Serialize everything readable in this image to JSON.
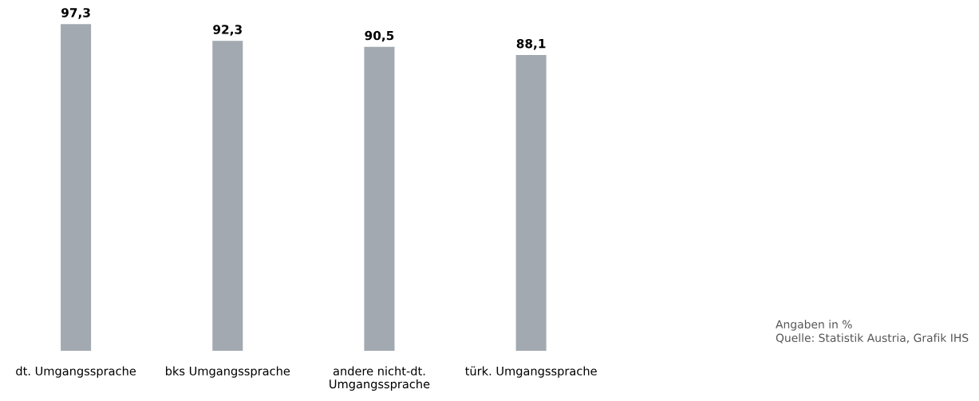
{
  "chart_data": {
    "type": "bar",
    "categories": [
      "dt. Umgangssprache",
      "bks Umgangssprache",
      "andere nicht-dt.\nUmgangssprache",
      "türk. Umgangssprache"
    ],
    "values": [
      97.3,
      92.3,
      90.5,
      88.1
    ],
    "color": "#a2a9b0",
    "data_labels": true,
    "value_labels": [
      "97,3",
      "92,3",
      "90,5",
      "88,1"
    ],
    "grid": false,
    "tick_labels": "x",
    "annotations": [
      "Angaben in %",
      "Quelle: Statistik Austria, Grafik IHS"
    ]
  }
}
